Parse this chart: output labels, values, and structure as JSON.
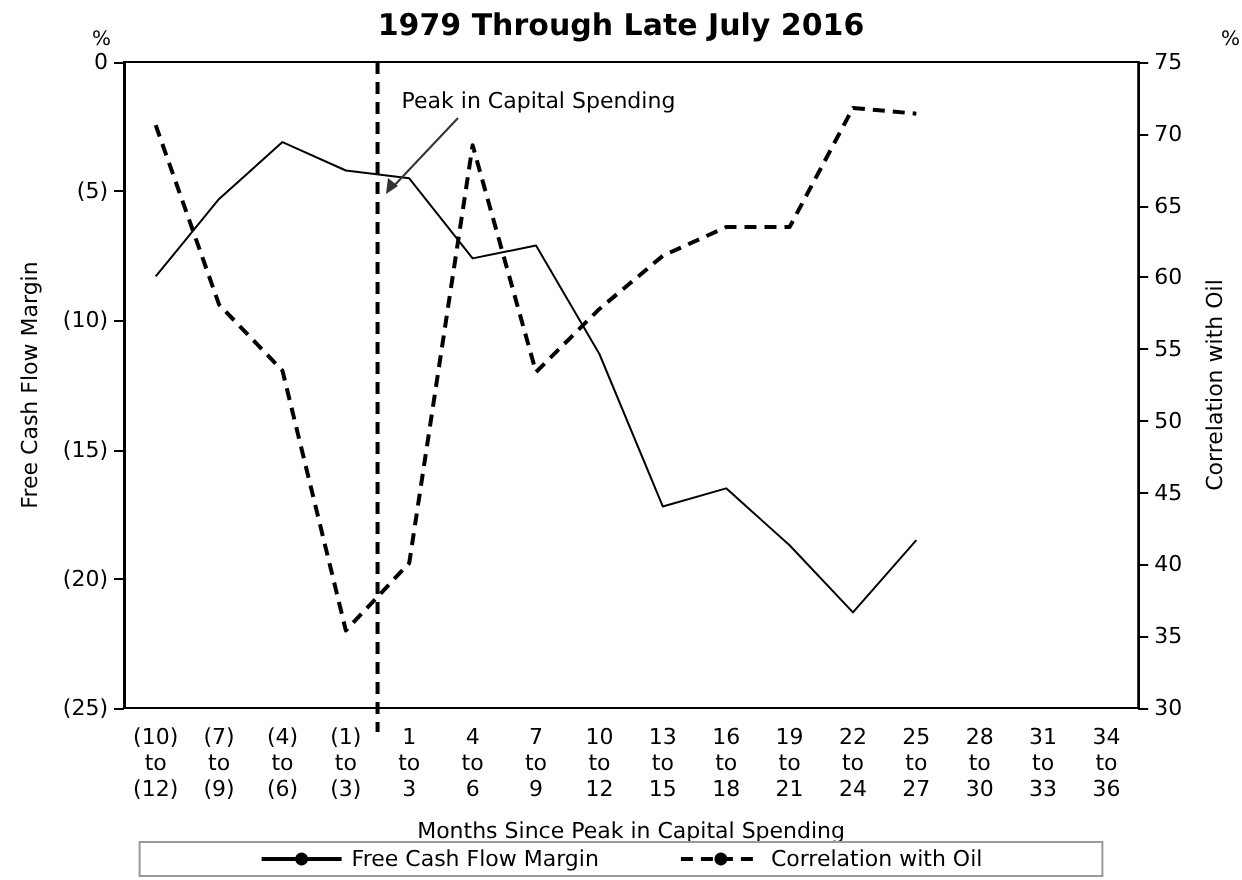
{
  "chart_data": {
    "type": "line",
    "title": "1979 Through Late July 2016",
    "xlabel": "Months Since Peak in Capital Spending",
    "ylabel": "Free Cash Flow Margin",
    "y2label": "Correlation with Oil",
    "categories": [
      "(10) to (12)",
      "(7) to (9)",
      "(4) to (6)",
      "(1) to (3)",
      "1 to 3",
      "4 to 6",
      "7 to 9",
      "10 to 12",
      "13 to 15",
      "16 to 18",
      "19 to 21",
      "22 to 24",
      "25 to 27",
      "28 to 30",
      "31 to 33",
      "34 to 36"
    ],
    "series": [
      {
        "name": "Free Cash Flow Margin",
        "color": "#000000",
        "line_style": "solid",
        "values": [
          -8.3,
          -5.3,
          -3.1,
          -4.2,
          -4.5,
          -7.6,
          -7.1,
          -11.3,
          -17.2,
          -16.5,
          -18.7,
          -21.3,
          -18.5,
          null,
          null,
          null
        ]
      },
      {
        "name": "Correlation with Oil",
        "color": "#000000",
        "line_style": "dashed",
        "axis": "y2",
        "values": [
          70.6,
          58.1,
          53.5,
          35.4,
          40.1,
          69.2,
          53.4,
          57.8,
          61.5,
          63.5,
          63.5,
          71.8,
          71.4,
          null,
          null,
          null
        ]
      }
    ],
    "ylim": [
      -25,
      0
    ],
    "yticks": [
      {
        "value": -25,
        "label": "(25)"
      },
      {
        "value": -20,
        "label": "(20)"
      },
      {
        "value": -15,
        "label": "(15)"
      },
      {
        "value": -10,
        "label": "(10)"
      },
      {
        "value": -5,
        "label": "(5)"
      },
      0
    ],
    "y2lim": [
      30,
      75
    ],
    "y2ticks": [
      30,
      35,
      40,
      45,
      50,
      55,
      60,
      65,
      70,
      75
    ],
    "annotations": [
      "%",
      "%",
      "Peak in Capital Spending"
    ],
    "marker": "none",
    "grid": false,
    "legend": "bottom"
  }
}
